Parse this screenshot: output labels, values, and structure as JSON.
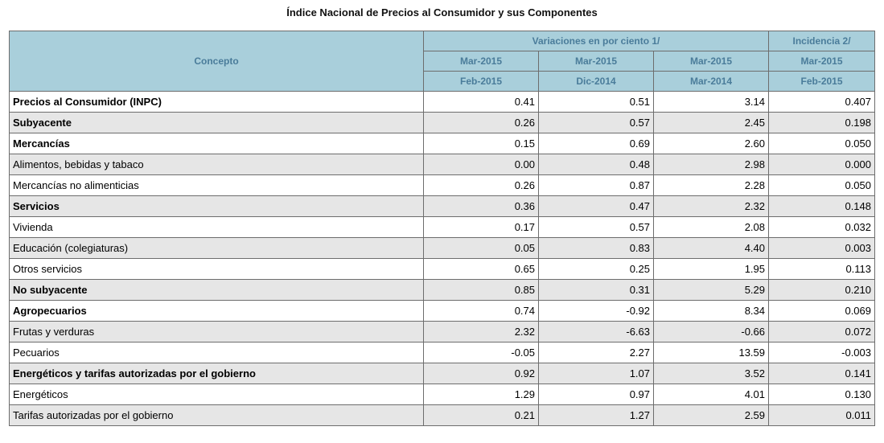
{
  "title": "Índice Nacional de Precios al Consumidor y sus Componentes",
  "header": {
    "concepto": "Concepto",
    "variaciones": "Variaciones en por ciento 1/",
    "incidencia": "Incidencia 2/",
    "col1_top": "Mar-2015",
    "col1_bottom": "Feb-2015",
    "col2_top": "Mar-2015",
    "col2_bottom": "Dic-2014",
    "col3_top": "Mar-2015",
    "col3_bottom": "Mar-2014",
    "col4_top": "Mar-2015",
    "col4_bottom": "Feb-2015"
  },
  "rows": [
    {
      "concept": "Precios al Consumidor (INPC)",
      "level": 0,
      "v1": "0.41",
      "v2": "0.51",
      "v3": "3.14",
      "inc": "0.407"
    },
    {
      "concept": "Subyacente",
      "level": 1,
      "v1": "0.26",
      "v2": "0.57",
      "v3": "2.45",
      "inc": "0.198"
    },
    {
      "concept": "Mercancías",
      "level": 2,
      "v1": "0.15",
      "v2": "0.69",
      "v3": "2.60",
      "inc": "0.050"
    },
    {
      "concept": "Alimentos, bebidas y tabaco",
      "level": 3,
      "v1": "0.00",
      "v2": "0.48",
      "v3": "2.98",
      "inc": "0.000"
    },
    {
      "concept": "Mercancías no alimenticias",
      "level": 3,
      "v1": "0.26",
      "v2": "0.87",
      "v3": "2.28",
      "inc": "0.050"
    },
    {
      "concept": "Servicios",
      "level": 2,
      "v1": "0.36",
      "v2": "0.47",
      "v3": "2.32",
      "inc": "0.148"
    },
    {
      "concept": "Vivienda",
      "level": 3,
      "v1": "0.17",
      "v2": "0.57",
      "v3": "2.08",
      "inc": "0.032"
    },
    {
      "concept": "Educación (colegiaturas)",
      "level": 3,
      "v1": "0.05",
      "v2": "0.83",
      "v3": "4.40",
      "inc": "0.003"
    },
    {
      "concept": "Otros servicios",
      "level": 3,
      "v1": "0.65",
      "v2": "0.25",
      "v3": "1.95",
      "inc": "0.113"
    },
    {
      "concept": "No subyacente",
      "level": 1,
      "v1": "0.85",
      "v2": "0.31",
      "v3": "5.29",
      "inc": "0.210"
    },
    {
      "concept": "Agropecuarios",
      "level": 2,
      "v1": "0.74",
      "v2": "-0.92",
      "v3": "8.34",
      "inc": "0.069"
    },
    {
      "concept": "Frutas y verduras",
      "level": 3,
      "v1": "2.32",
      "v2": "-6.63",
      "v3": "-0.66",
      "inc": "0.072"
    },
    {
      "concept": "Pecuarios",
      "level": 3,
      "v1": "-0.05",
      "v2": "2.27",
      "v3": "13.59",
      "inc": "-0.003"
    },
    {
      "concept": "Energéticos y tarifas autorizadas por el gobierno",
      "level": 2,
      "v1": "0.92",
      "v2": "1.07",
      "v3": "3.52",
      "inc": "0.141"
    },
    {
      "concept": "Energéticos",
      "level": 3,
      "v1": "1.29",
      "v2": "0.97",
      "v3": "4.01",
      "inc": "0.130"
    },
    {
      "concept": "Tarifas autorizadas por el gobierno",
      "level": 3,
      "v1": "0.21",
      "v2": "1.27",
      "v3": "2.59",
      "inc": "0.011"
    }
  ]
}
